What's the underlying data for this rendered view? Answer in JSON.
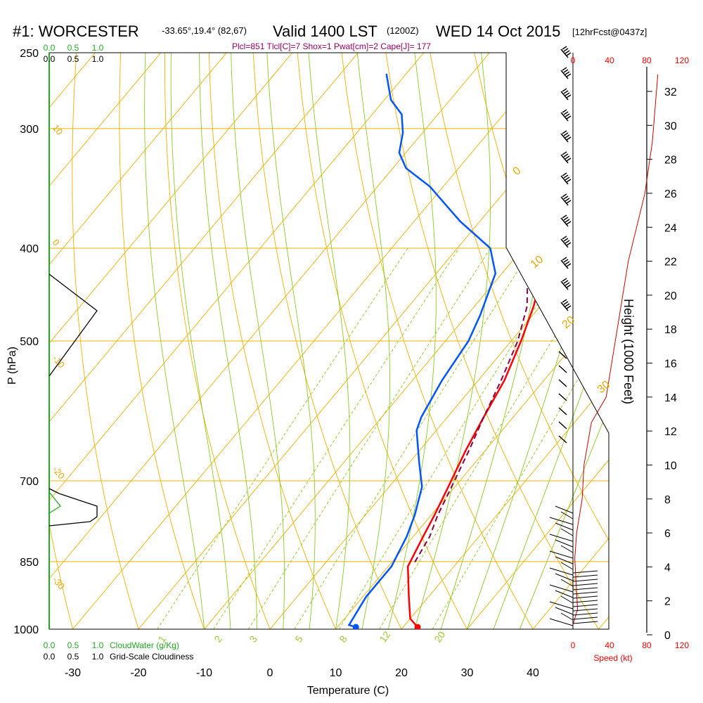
{
  "header": {
    "station": "#1: WORCESTER",
    "coords": "-33.65°,19.4° (82,67)",
    "valid": "Valid 1400 LST",
    "utc": "(1200Z)",
    "date": "WED 14 Oct 2015",
    "forecast": "[12hrFcst@0437z]"
  },
  "indices": "Plcl=851 Tlcl[C]=7 Shox=1 Pwat[cm]=2 Cape[J]= 177",
  "colors": {
    "isobar": "#f0b000",
    "isotherm": "#f0b000",
    "dry_adiabat": "#f0b000",
    "moist_adiabat": "#88cc22",
    "mixing_ratio": "#99cc33",
    "temperature": "#ff0000",
    "dewpoint": "#0055ff",
    "parcel": "#880044",
    "cloud": "#22aa22"
  },
  "chart_data": {
    "type": "line",
    "title": "#1: WORCESTER",
    "xlabel": "Temperature (C)",
    "ylabel": "P (hPa)",
    "y_scale": "log",
    "xlim": [
      -35,
      45
    ],
    "ylim": [
      1000,
      250
    ],
    "x_ticks": [
      "-30",
      "-20",
      "-10",
      "0",
      "10",
      "20",
      "30",
      "40"
    ],
    "y_ticks": [
      "250",
      "300",
      "400",
      "500",
      "700",
      "850",
      "1000"
    ],
    "height_axis": {
      "label": "Height (1000 Feet)",
      "ticks": [
        "0",
        "2",
        "4",
        "6",
        "8",
        "10",
        "12",
        "14",
        "16",
        "18",
        "20",
        "22",
        "24",
        "26",
        "28",
        "30",
        "32"
      ]
    },
    "speed_axis": {
      "label": "Speed (kt)",
      "ticks": [
        "0",
        "40",
        "80",
        "120"
      ]
    },
    "cloud_axis": {
      "label_water": "CloudWater (g/Kg)",
      "label_cloudiness": "Grid-Scale Cloudiness",
      "ticks": [
        "0.0",
        "0.5",
        "1.0"
      ]
    },
    "isotherm_labels": [
      "0",
      "10",
      "20",
      "30"
    ],
    "dry_adiabat_labels": [
      "10",
      "0",
      "-10",
      "-20",
      "-30"
    ],
    "mixing_ratio_labels": [
      "1",
      "2",
      "3",
      "5",
      "8",
      "12",
      "20"
    ],
    "series": [
      {
        "name": "temperature",
        "points": [
          [
            22.2,
            995
          ],
          [
            20.0,
            975
          ],
          [
            17.0,
            925
          ],
          [
            13.0,
            860
          ],
          [
            11.5,
            800
          ],
          [
            10.5,
            760
          ],
          [
            9.0,
            710
          ],
          [
            7.0,
            650
          ],
          [
            5.5,
            600
          ],
          [
            4.0,
            550
          ],
          [
            1.5,
            500
          ],
          [
            -1.0,
            460
          ],
          [
            -3.5,
            430
          ],
          [
            -5.5,
            400
          ],
          [
            -8.5,
            370
          ],
          [
            -11.5,
            345
          ],
          [
            -14.5,
            320
          ],
          [
            -17.5,
            300
          ],
          [
            -20.0,
            285
          ],
          [
            -23.5,
            270
          ],
          [
            -26.0,
            263
          ]
        ]
      },
      {
        "name": "dewpoint",
        "points": [
          [
            12.8,
            995
          ],
          [
            11.5,
            990
          ],
          [
            10.5,
            925
          ],
          [
            10.5,
            860
          ],
          [
            9.0,
            800
          ],
          [
            7.5,
            760
          ],
          [
            5.0,
            710
          ],
          [
            1.5,
            670
          ],
          [
            -3.0,
            620
          ],
          [
            -4.0,
            600
          ],
          [
            -5.5,
            550
          ],
          [
            -6.5,
            500
          ],
          [
            -8.0,
            470
          ],
          [
            -11.0,
            425
          ],
          [
            -15.0,
            400
          ],
          [
            -23.0,
            375
          ],
          [
            -32.0,
            345
          ],
          [
            -38.0,
            330
          ],
          [
            -41.0,
            318
          ],
          [
            -43.0,
            303
          ],
          [
            -45.5,
            290
          ],
          [
            -49.0,
            280
          ],
          [
            -53.0,
            263
          ]
        ]
      },
      {
        "name": "parcel",
        "points": [
          [
            13.5,
            851
          ],
          [
            12.5,
            800
          ],
          [
            11.0,
            760
          ],
          [
            9.5,
            710
          ],
          [
            7.5,
            650
          ],
          [
            5.5,
            600
          ],
          [
            3.5,
            550
          ],
          [
            1.0,
            500
          ],
          [
            -2.0,
            460
          ],
          [
            -5.5,
            430
          ]
        ]
      },
      {
        "name": "height",
        "points": [
          [
            0,
            0.6
          ],
          [
            5,
            1.5
          ],
          [
            2,
            4.5
          ],
          [
            4,
            6
          ],
          [
            10,
            8
          ],
          [
            12,
            10
          ],
          [
            20,
            12.5
          ],
          [
            36,
            14
          ],
          [
            48,
            18
          ],
          [
            60,
            22
          ],
          [
            78,
            26
          ],
          [
            86,
            29
          ],
          [
            92,
            33
          ]
        ]
      }
    ]
  }
}
